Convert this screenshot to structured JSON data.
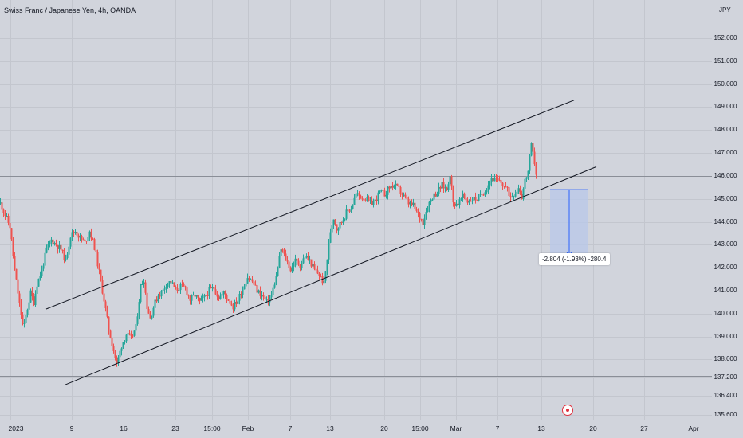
{
  "header": {
    "title": "Swiss Franc / Japanese Yen, 4h, OANDA",
    "currency": "JPY"
  },
  "measurement": {
    "label": "-2.804 (-1.93%) -280.4"
  },
  "colors": {
    "background": "#d1d4dc",
    "up": "#26a69a",
    "down": "#ef5350",
    "channel": "#131722",
    "measure_fill": "#b8c8ea",
    "measure_line": "#2962ff",
    "event": "#e0303e"
  },
  "icons": {
    "event_marker": "economic-event-icon"
  },
  "chart_data": {
    "type": "candlestick",
    "title": "Swiss Franc / Japanese Yen, 4h, OANDA",
    "y_unit": "JPY",
    "ylim": [
      135.6,
      152.4
    ],
    "grid": true,
    "y_ticks": [
      "152.000",
      "151.000",
      "150.000",
      "149.000",
      "148.000",
      "147.000",
      "146.000",
      "145.000",
      "144.000",
      "143.000",
      "142.000",
      "141.000",
      "140.000",
      "139.000",
      "138.000",
      "137.200",
      "136.400",
      "135.600"
    ],
    "x_ticks": [
      "2023",
      "9",
      "16",
      "23",
      "15:00",
      "Feb",
      "7",
      "13",
      "20",
      "15:00",
      "Mar",
      "7",
      "13",
      "20",
      "27",
      "Apr"
    ],
    "price_path": [
      [
        0,
        144.8
      ],
      [
        12,
        143.8
      ],
      [
        18,
        141.9
      ],
      [
        24,
        140.4
      ],
      [
        29,
        139.3
      ],
      [
        32,
        139.9
      ],
      [
        38,
        140.9
      ],
      [
        42,
        140.5
      ],
      [
        46,
        141.3
      ],
      [
        52,
        141.9
      ],
      [
        58,
        142.8
      ],
      [
        64,
        143.2
      ],
      [
        70,
        143.0
      ],
      [
        76,
        142.8
      ],
      [
        82,
        142.3
      ],
      [
        88,
        143.4
      ],
      [
        94,
        143.6
      ],
      [
        100,
        143.3
      ],
      [
        106,
        143.1
      ],
      [
        112,
        143.6
      ],
      [
        118,
        142.9
      ],
      [
        124,
        141.8
      ],
      [
        130,
        140.6
      ],
      [
        136,
        139.3
      ],
      [
        142,
        138.4
      ],
      [
        146,
        137.8
      ],
      [
        152,
        138.6
      ],
      [
        158,
        139.1
      ],
      [
        164,
        138.9
      ],
      [
        170,
        139.4
      ],
      [
        176,
        141.2
      ],
      [
        180,
        141.5
      ],
      [
        184,
        140.3
      ],
      [
        188,
        139.8
      ],
      [
        193,
        140.4
      ],
      [
        198,
        140.8
      ],
      [
        204,
        141.0
      ],
      [
        208,
        141.3
      ],
      [
        214,
        141.4
      ],
      [
        220,
        141.0
      ],
      [
        226,
        141.2
      ],
      [
        232,
        141.1
      ],
      [
        238,
        140.6
      ],
      [
        244,
        140.8
      ],
      [
        250,
        140.5
      ],
      [
        256,
        140.7
      ],
      [
        262,
        141.0
      ],
      [
        268,
        141.1
      ],
      [
        274,
        140.7
      ],
      [
        280,
        140.9
      ],
      [
        286,
        140.6
      ],
      [
        292,
        140.3
      ],
      [
        298,
        140.6
      ],
      [
        304,
        141.1
      ],
      [
        310,
        141.6
      ],
      [
        316,
        141.4
      ],
      [
        322,
        141.0
      ],
      [
        328,
        140.8
      ],
      [
        334,
        140.5
      ],
      [
        340,
        140.8
      ],
      [
        346,
        141.6
      ],
      [
        352,
        142.8
      ],
      [
        358,
        142.4
      ],
      [
        364,
        141.9
      ],
      [
        370,
        142.3
      ],
      [
        376,
        142.1
      ],
      [
        382,
        142.5
      ],
      [
        388,
        142.3
      ],
      [
        394,
        141.9
      ],
      [
        400,
        141.7
      ],
      [
        406,
        141.3
      ],
      [
        410,
        142.4
      ],
      [
        414,
        143.6
      ],
      [
        418,
        144.2
      ],
      [
        422,
        143.7
      ],
      [
        428,
        144.0
      ],
      [
        434,
        144.4
      ],
      [
        440,
        144.6
      ],
      [
        446,
        145.2
      ],
      [
        452,
        145.1
      ],
      [
        458,
        145.0
      ],
      [
        464,
        144.8
      ],
      [
        470,
        144.9
      ],
      [
        476,
        145.3
      ],
      [
        482,
        145.2
      ],
      [
        488,
        145.5
      ],
      [
        494,
        145.6
      ],
      [
        500,
        145.4
      ],
      [
        506,
        145.1
      ],
      [
        512,
        144.8
      ],
      [
        518,
        144.7
      ],
      [
        524,
        144.3
      ],
      [
        530,
        144.0
      ],
      [
        536,
        144.7
      ],
      [
        542,
        145.1
      ],
      [
        548,
        145.3
      ],
      [
        554,
        145.6
      ],
      [
        560,
        145.4
      ],
      [
        564,
        146.1
      ],
      [
        568,
        144.8
      ],
      [
        574,
        144.8
      ],
      [
        580,
        145.1
      ],
      [
        586,
        144.9
      ],
      [
        592,
        145.0
      ],
      [
        598,
        145.0
      ],
      [
        604,
        145.2
      ],
      [
        610,
        145.5
      ],
      [
        616,
        145.9
      ],
      [
        622,
        145.8
      ],
      [
        628,
        145.7
      ],
      [
        634,
        145.5
      ],
      [
        640,
        145.1
      ],
      [
        646,
        145.3
      ],
      [
        650,
        145.5
      ],
      [
        654,
        145.1
      ],
      [
        658,
        145.8
      ],
      [
        662,
        146.2
      ],
      [
        666,
        147.3
      ],
      [
        670,
        146.6
      ],
      [
        672,
        146.1
      ]
    ],
    "channel_upper": [
      [
        58,
        140.2
      ],
      [
        720,
        149.3
      ]
    ],
    "channel_lower": [
      [
        82,
        136.9
      ],
      [
        748,
        146.4
      ]
    ],
    "horizontal_levels": [
      147.8,
      146.0,
      137.3
    ],
    "measure": {
      "x_range": [
        690,
        738
      ],
      "from": 145.4,
      "to": 142.5,
      "label": "-2.804 (-1.93%) -280.4"
    }
  }
}
